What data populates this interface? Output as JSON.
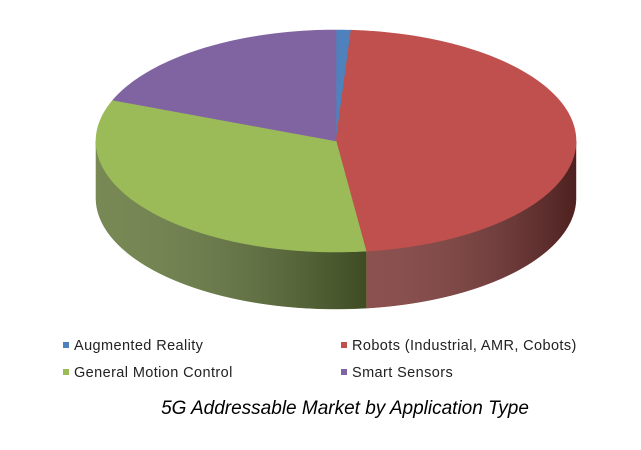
{
  "chart_data": {
    "type": "pie",
    "title": "5G Addressable Market by Application Type",
    "categories": [
      "Augmented Reality",
      "Robots (Industrial, AMR, Cobots)",
      "General Motion Control",
      "Smart Sensors"
    ],
    "values": [
      1,
      47,
      33,
      19
    ],
    "colors": [
      "#4f81bd",
      "#c0504d",
      "#9bbb59",
      "#8064a2"
    ],
    "legend": "bottom"
  }
}
